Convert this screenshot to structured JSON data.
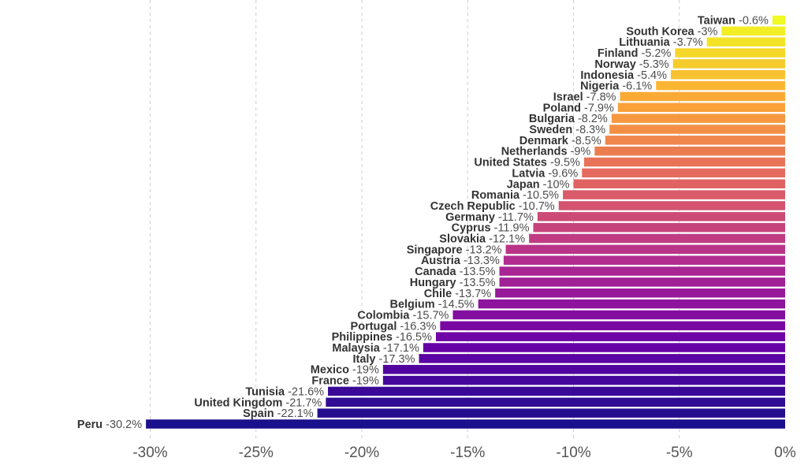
{
  "chart_data": {
    "type": "bar",
    "orientation": "horizontal",
    "title": "",
    "xlabel": "",
    "ylabel": "",
    "xlim": [
      -30,
      0
    ],
    "grid": true,
    "ticks": [
      {
        "value": -30,
        "label": "-30%"
      },
      {
        "value": -25,
        "label": "-25%"
      },
      {
        "value": -20,
        "label": "-20%"
      },
      {
        "value": -15,
        "label": "-15%"
      },
      {
        "value": -10,
        "label": "-10%"
      },
      {
        "value": -5,
        "label": "-5%"
      },
      {
        "value": 0,
        "label": "0%"
      }
    ],
    "color_scale": [
      "#1a0f8c",
      "#6a00a8",
      "#b12a90",
      "#e16462",
      "#fca636",
      "#f0f921"
    ],
    "bars": [
      {
        "country": "Taiwan",
        "value": -0.6,
        "value_label": "-0.6%"
      },
      {
        "country": "South Korea",
        "value": -3,
        "value_label": "-3%"
      },
      {
        "country": "Lithuania",
        "value": -3.7,
        "value_label": "-3.7%"
      },
      {
        "country": "Finland",
        "value": -5.2,
        "value_label": "-5.2%"
      },
      {
        "country": "Norway",
        "value": -5.3,
        "value_label": "-5.3%"
      },
      {
        "country": "Indonesia",
        "value": -5.4,
        "value_label": "-5.4%"
      },
      {
        "country": "Nigeria",
        "value": -6.1,
        "value_label": "-6.1%"
      },
      {
        "country": "Israel",
        "value": -7.8,
        "value_label": "-7.8%"
      },
      {
        "country": "Poland",
        "value": -7.9,
        "value_label": "-7.9%"
      },
      {
        "country": "Bulgaria",
        "value": -8.2,
        "value_label": "-8.2%"
      },
      {
        "country": "Sweden",
        "value": -8.3,
        "value_label": "-8.3%"
      },
      {
        "country": "Denmark",
        "value": -8.5,
        "value_label": "-8.5%"
      },
      {
        "country": "Netherlands",
        "value": -9,
        "value_label": "-9%"
      },
      {
        "country": "United States",
        "value": -9.5,
        "value_label": "-9.5%"
      },
      {
        "country": "Latvia",
        "value": -9.6,
        "value_label": "-9.6%"
      },
      {
        "country": "Japan",
        "value": -10,
        "value_label": "-10%"
      },
      {
        "country": "Romania",
        "value": -10.5,
        "value_label": "-10.5%"
      },
      {
        "country": "Czech Republic",
        "value": -10.7,
        "value_label": "-10.7%"
      },
      {
        "country": "Germany",
        "value": -11.7,
        "value_label": "-11.7%"
      },
      {
        "country": "Cyprus",
        "value": -11.9,
        "value_label": "-11.9%"
      },
      {
        "country": "Slovakia",
        "value": -12.1,
        "value_label": "-12.1%"
      },
      {
        "country": "Singapore",
        "value": -13.2,
        "value_label": "-13.2%"
      },
      {
        "country": "Austria",
        "value": -13.3,
        "value_label": "-13.3%"
      },
      {
        "country": "Canada",
        "value": -13.5,
        "value_label": "-13.5%"
      },
      {
        "country": "Hungary",
        "value": -13.5,
        "value_label": "-13.5%"
      },
      {
        "country": "Chile",
        "value": -13.7,
        "value_label": "-13.7%"
      },
      {
        "country": "Belgium",
        "value": -14.5,
        "value_label": "-14.5%"
      },
      {
        "country": "Colombia",
        "value": -15.7,
        "value_label": "-15.7%"
      },
      {
        "country": "Portugal",
        "value": -16.3,
        "value_label": "-16.3%"
      },
      {
        "country": "Philippines",
        "value": -16.5,
        "value_label": "-16.5%"
      },
      {
        "country": "Malaysia",
        "value": -17.1,
        "value_label": "-17.1%"
      },
      {
        "country": "Italy",
        "value": -17.3,
        "value_label": "-17.3%"
      },
      {
        "country": "Mexico",
        "value": -19,
        "value_label": "-19%"
      },
      {
        "country": "France",
        "value": -19,
        "value_label": "-19%"
      },
      {
        "country": "Tunisia",
        "value": -21.6,
        "value_label": "-21.6%"
      },
      {
        "country": "United Kingdom",
        "value": -21.7,
        "value_label": "-21.7%"
      },
      {
        "country": "Spain",
        "value": -22.1,
        "value_label": "-22.1%"
      },
      {
        "country": "Peru",
        "value": -30.2,
        "value_label": "-30.2%"
      }
    ]
  }
}
